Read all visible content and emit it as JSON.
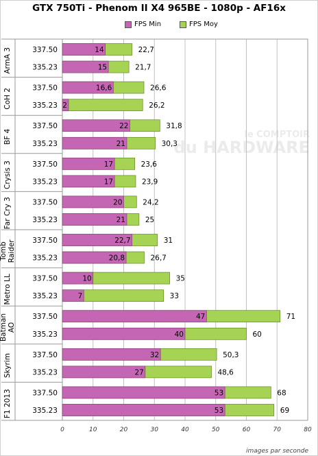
{
  "title": "GTX 750Ti - Phenom II X4 965BE - 1080p - AF16x",
  "credit": "images par seconde",
  "watermark": {
    "line1": "le COMPTOIR",
    "line2": "du HARDWARE"
  },
  "colors": {
    "min_fill": "#c466b4",
    "min_stroke": "#8a3d7d",
    "moy_fill": "#a6d353",
    "moy_stroke": "#5e8a1f",
    "grid": "#c0c0c0"
  },
  "chart_data": {
    "type": "bar",
    "orientation": "horizontal",
    "title": "GTX 750Ti - Phenom II X4 965BE - 1080p - AF16x",
    "xlabel": "images par seconde",
    "xlim": [
      0,
      80
    ],
    "xticks": [
      0,
      10,
      20,
      30,
      40,
      50,
      60,
      70,
      80
    ],
    "grid": true,
    "legend": "top-center",
    "series": [
      {
        "name": "FPS Min",
        "color": "#c466b4"
      },
      {
        "name": "FPS Moy",
        "color": "#a6d353"
      }
    ],
    "groups": [
      {
        "label": "ArmA 3",
        "rows": [
          {
            "label": "337.50",
            "min": 14,
            "moy": 22.7,
            "min_label": "14",
            "moy_label": "22,7"
          },
          {
            "label": "335.23",
            "min": 15,
            "moy": 21.7,
            "min_label": "15",
            "moy_label": "21,7"
          }
        ]
      },
      {
        "label": "CoH 2",
        "rows": [
          {
            "label": "337.50",
            "min": 16.6,
            "moy": 26.6,
            "min_label": "16,6",
            "moy_label": "26,6"
          },
          {
            "label": "335.23",
            "min": 2,
            "moy": 26.2,
            "min_label": "2",
            "moy_label": "26,2"
          }
        ]
      },
      {
        "label": "BF 4",
        "rows": [
          {
            "label": "337.50",
            "min": 22,
            "moy": 31.8,
            "min_label": "22",
            "moy_label": "31,8"
          },
          {
            "label": "335.23",
            "min": 21,
            "moy": 30.3,
            "min_label": "21",
            "moy_label": "30,3"
          }
        ]
      },
      {
        "label": "Crysis 3",
        "rows": [
          {
            "label": "337.50",
            "min": 17,
            "moy": 23.6,
            "min_label": "17",
            "moy_label": "23,6"
          },
          {
            "label": "335.23",
            "min": 17,
            "moy": 23.9,
            "min_label": "17",
            "moy_label": "23,9"
          }
        ]
      },
      {
        "label": "Far Cry 3",
        "rows": [
          {
            "label": "337.50",
            "min": 20,
            "moy": 24.2,
            "min_label": "20",
            "moy_label": "24,2"
          },
          {
            "label": "335.23",
            "min": 21,
            "moy": 25,
            "min_label": "21",
            "moy_label": "25"
          }
        ]
      },
      {
        "label": "Tomb Raider",
        "rows": [
          {
            "label": "337.50",
            "min": 22.7,
            "moy": 31,
            "min_label": "22,7",
            "moy_label": "31"
          },
          {
            "label": "335.23",
            "min": 20.8,
            "moy": 26.7,
            "min_label": "20,8",
            "moy_label": "26,7"
          }
        ]
      },
      {
        "label": "Metro LL",
        "rows": [
          {
            "label": "337.50",
            "min": 10,
            "moy": 35,
            "min_label": "10",
            "moy_label": "35"
          },
          {
            "label": "335.23",
            "min": 7,
            "moy": 33,
            "min_label": "7",
            "moy_label": "33"
          }
        ]
      },
      {
        "label": "Batman AO",
        "rows": [
          {
            "label": "337.50",
            "min": 47,
            "moy": 71,
            "min_label": "47",
            "moy_label": "71"
          },
          {
            "label": "335.23",
            "min": 40,
            "moy": 60,
            "min_label": "40",
            "moy_label": "60"
          }
        ]
      },
      {
        "label": "Skyrim",
        "rows": [
          {
            "label": "337.50",
            "min": 32,
            "moy": 50.3,
            "min_label": "32",
            "moy_label": "50,3"
          },
          {
            "label": "335.23",
            "min": 27,
            "moy": 48.6,
            "min_label": "27",
            "moy_label": "48,6"
          }
        ]
      },
      {
        "label": "F1 2013",
        "rows": [
          {
            "label": "337.50",
            "min": 53,
            "moy": 68,
            "min_label": "53",
            "moy_label": "68"
          },
          {
            "label": "335.23",
            "min": 53,
            "moy": 69,
            "min_label": "53",
            "moy_label": "69"
          }
        ]
      }
    ]
  }
}
